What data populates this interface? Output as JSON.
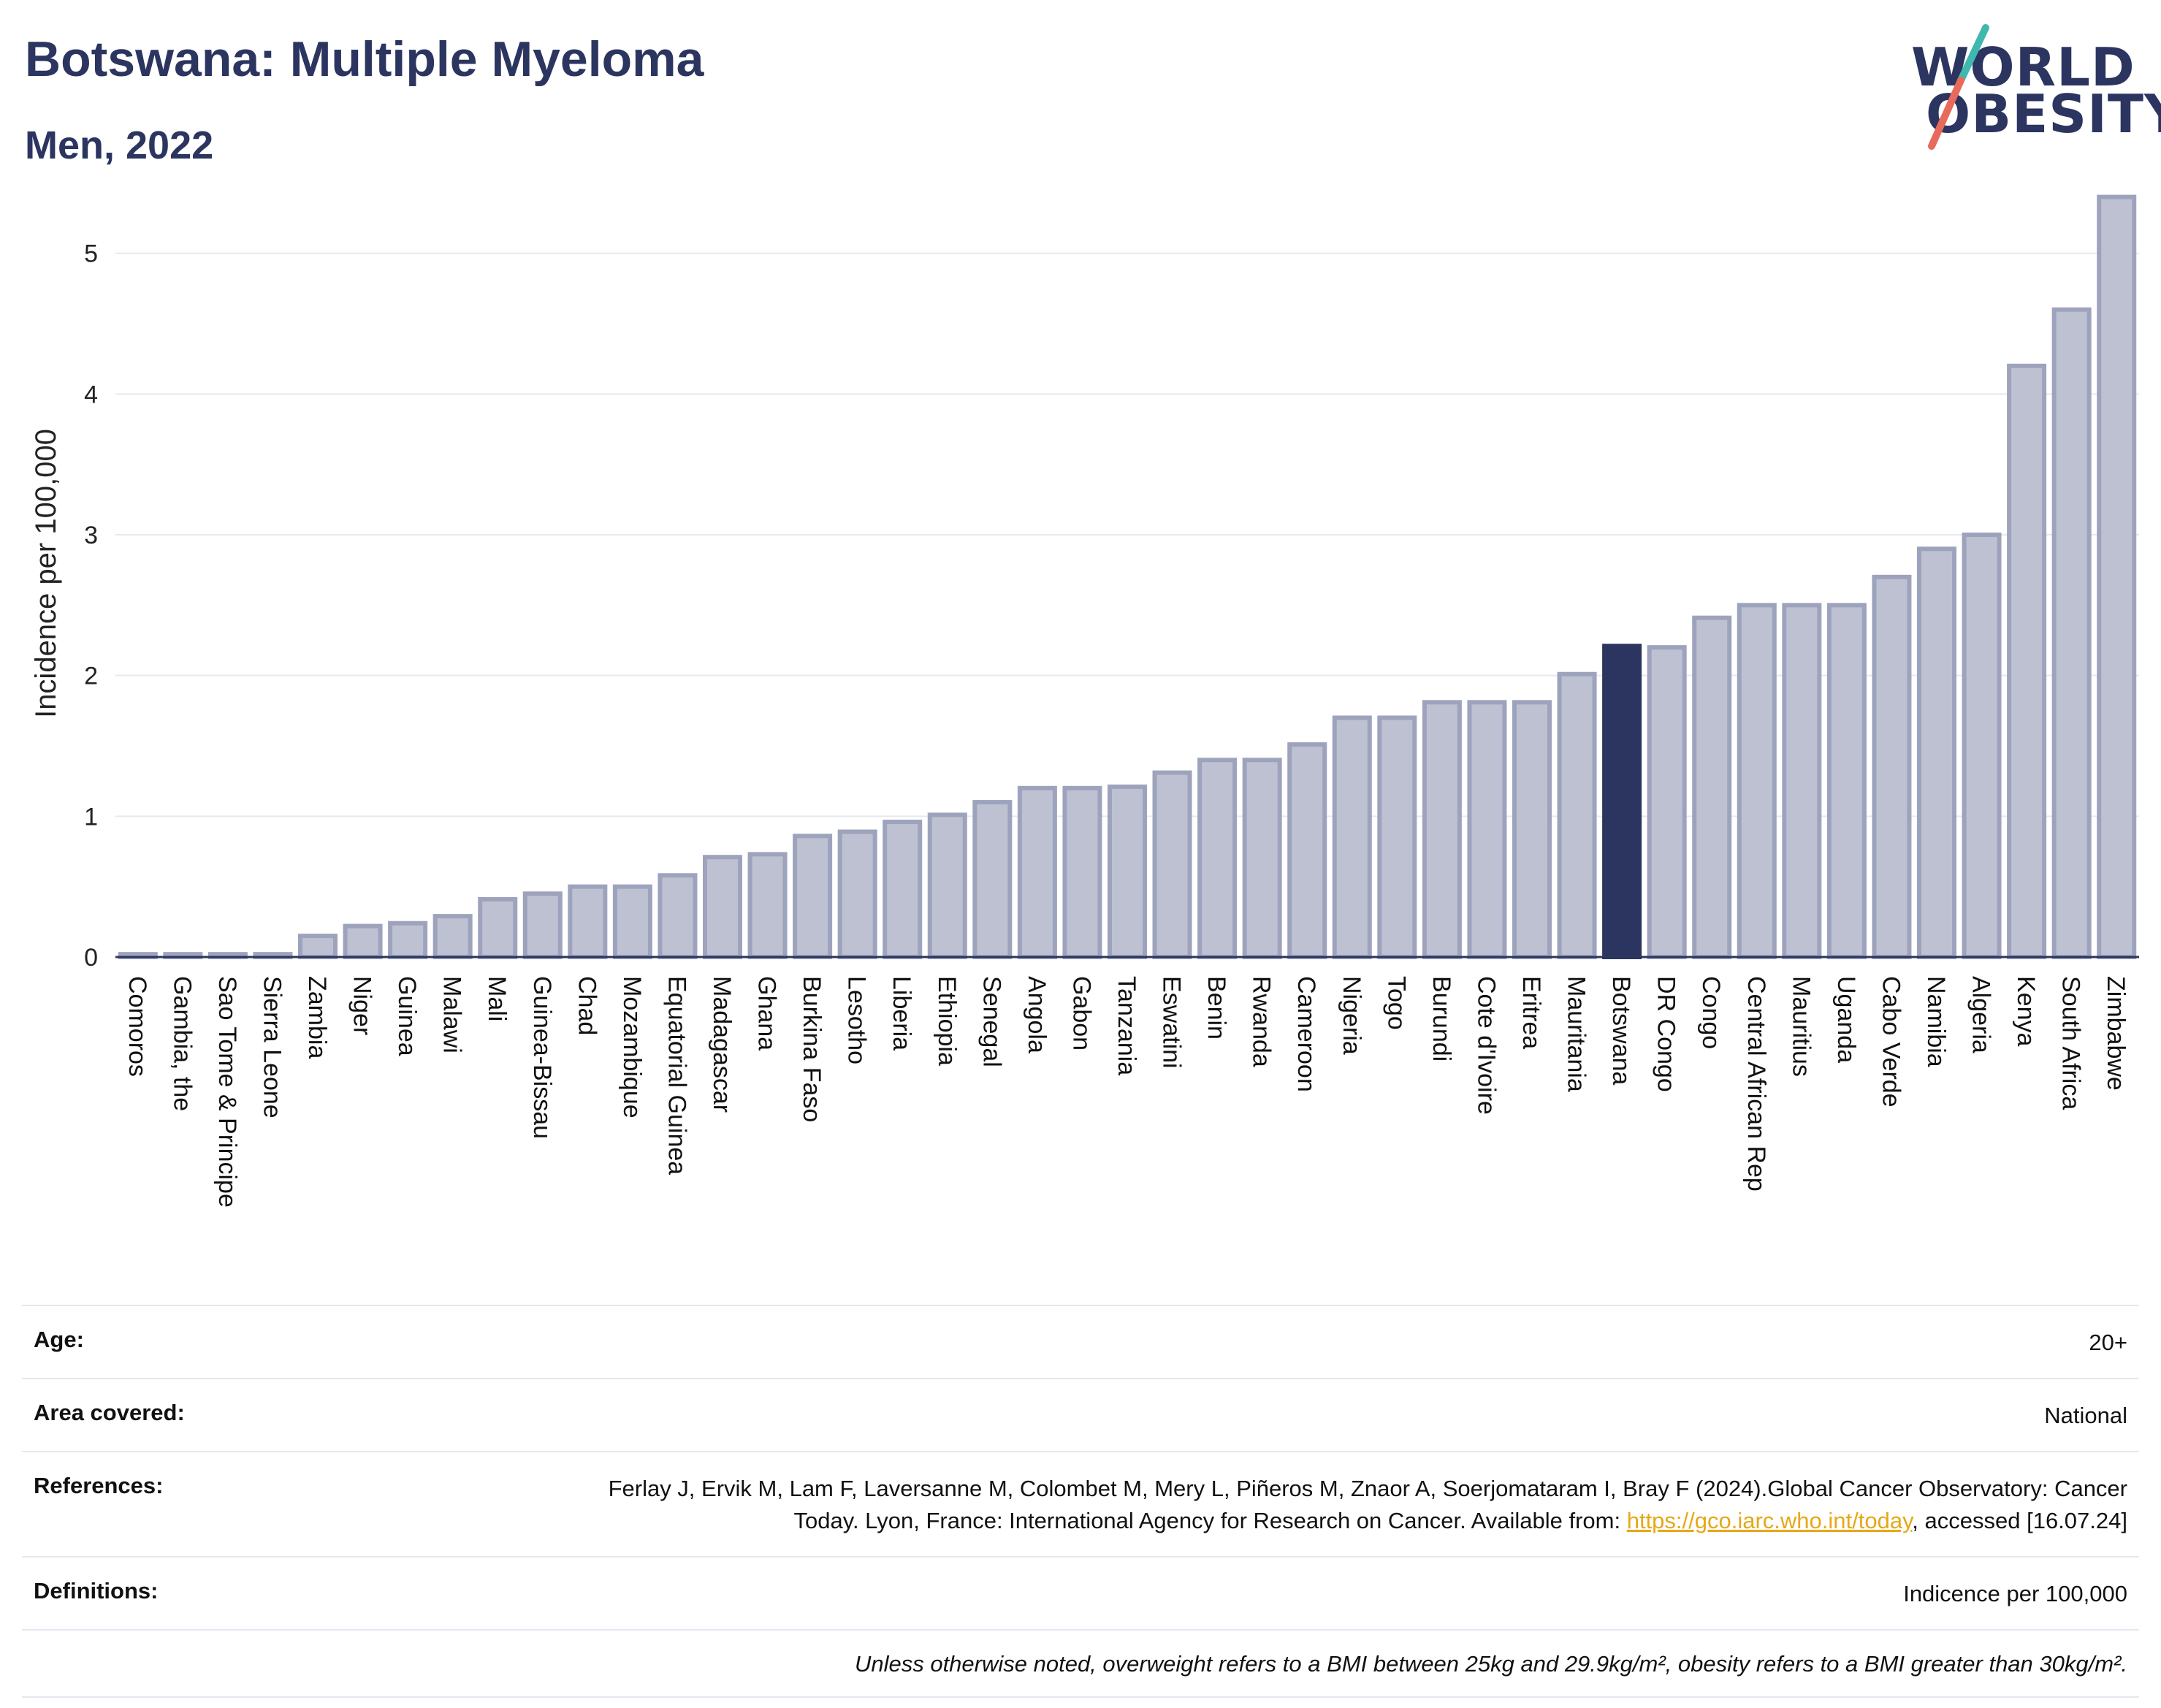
{
  "header": {
    "title": "Botswana: Multiple Myeloma",
    "subtitle": "Men, 2022"
  },
  "logo": {
    "line1": "WORLD",
    "line2": "OBESITY"
  },
  "colors": {
    "bar": "#bec1d2",
    "bar_stroke": "#9ea3bd",
    "highlight": "#2b3560",
    "title": "#2b3560",
    "grid": "#e6e8f0",
    "logo_teal": "#3fb8b0",
    "logo_red": "#e86a5a"
  },
  "chart_data": {
    "type": "bar",
    "ylabel": "Incidence per 100,000",
    "ylim": [
      0,
      5.45
    ],
    "yticks": [
      0,
      1,
      2,
      3,
      4,
      5
    ],
    "highlight": "Botswana",
    "categories": [
      "Comoros",
      "Gambia, the",
      "Sao Tome & Principe",
      "Sierra Leone",
      "Zambia",
      "Niger",
      "Guinea",
      "Malawi",
      "Mali",
      "Guinea-Bissau",
      "Chad",
      "Mozambique",
      "Equatorial Guinea",
      "Madagascar",
      "Ghana",
      "Burkina Faso",
      "Lesotho",
      "Liberia",
      "Ethiopia",
      "Senegal",
      "Angola",
      "Gabon",
      "Tanzania",
      "Eswatini",
      "Benin",
      "Rwanda",
      "Cameroon",
      "Nigeria",
      "Togo",
      "Burundi",
      "Cote d'Ivoire",
      "Eritrea",
      "Mauritania",
      "Botswana",
      "DR Congo",
      "Congo",
      "Central African Rep",
      "Mauritius",
      "Uganda",
      "Cabo Verde",
      "Namibia",
      "Algeria",
      "Kenya",
      "South Africa",
      "Zimbabwe"
    ],
    "values": [
      0.02,
      0.02,
      0.02,
      0.02,
      0.15,
      0.22,
      0.24,
      0.29,
      0.41,
      0.45,
      0.5,
      0.5,
      0.58,
      0.71,
      0.73,
      0.86,
      0.89,
      0.96,
      1.01,
      1.1,
      1.2,
      1.2,
      1.21,
      1.31,
      1.4,
      1.4,
      1.51,
      1.7,
      1.7,
      1.81,
      1.81,
      1.81,
      2.01,
      2.21,
      2.2,
      2.41,
      2.5,
      2.5,
      2.5,
      2.7,
      2.9,
      3.0,
      4.2,
      4.6,
      5.4
    ]
  },
  "footer": {
    "age_label": "Age:",
    "age_value": "20+",
    "area_label": "Area covered:",
    "area_value": "National",
    "refs_label": "References:",
    "refs_text": "Ferlay J, Ervik M, Lam F, Laversanne M, Colombet M, Mery L, Piñeros M, Znaor A, Soerjomataram I, Bray F (2024).Global Cancer Observatory: Cancer Today. Lyon, France: International Agency for Research on Cancer. Available from: ",
    "refs_link": "https://gco.iarc.who.int/today",
    "refs_tail": ", accessed [16.07.24]",
    "defs_label": "Definitions:",
    "defs_value": "Indicence per 100,000",
    "note": "Unless otherwise noted, overweight refers to a BMI between 25kg and 29.9kg/m², obesity refers to a BMI greater than 30kg/m²."
  }
}
